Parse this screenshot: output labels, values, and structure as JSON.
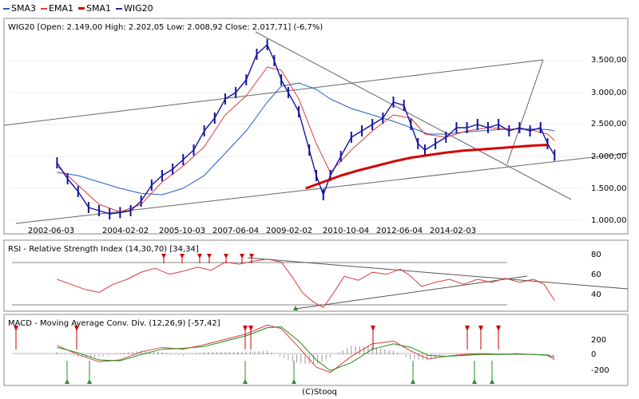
{
  "legend": {
    "items": [
      {
        "label": "SMA3",
        "color": "#1f5fbf"
      },
      {
        "label": "EMA1",
        "color": "#e03a3a"
      },
      {
        "label": "SMA1",
        "color": "#d40000"
      },
      {
        "label": "WIG20",
        "color": "#203080"
      }
    ]
  },
  "footer": {
    "text": "(C)Stooq"
  },
  "chart_data": [
    {
      "type": "line",
      "title": "WIG20 [Open: 2.149,00  High: 2.202,05  Low: 2.008,92  Close: 2.017,71] (-6,7%)",
      "x_tick_labels": [
        "2002-06-03",
        "2004-02-02",
        "2005-10-03",
        "2007-06-04",
        "2009-02-02",
        "2010-10-04",
        "2012-06-04",
        "2014-02-03"
      ],
      "y_tick_labels": [
        "1.000,00",
        "1.500,00",
        "2.000,00",
        "2.500,00",
        "3.000,00",
        "3.500,00"
      ],
      "ylim": [
        900,
        3950
      ],
      "series": [
        {
          "name": "WIG20",
          "color": "#1414a0",
          "x": [
            2001.4,
            2001.7,
            2002.0,
            2002.3,
            2002.6,
            2002.9,
            2003.2,
            2003.5,
            2003.8,
            2004.1,
            2004.4,
            2004.7,
            2005.0,
            2005.3,
            2005.6,
            2005.9,
            2006.2,
            2006.5,
            2006.8,
            2007.1,
            2007.4,
            2007.6,
            2007.8,
            2008.0,
            2008.3,
            2008.6,
            2008.8,
            2009.0,
            2009.2,
            2009.5,
            2009.8,
            2010.1,
            2010.4,
            2010.7,
            2011.0,
            2011.3,
            2011.5,
            2011.7,
            2011.9,
            2012.2,
            2012.5,
            2012.8,
            2013.1,
            2013.4,
            2013.7,
            2014.0,
            2014.3,
            2014.6,
            2014.9,
            2015.2,
            2015.4,
            2015.6
          ],
          "values": [
            1900,
            1650,
            1450,
            1200,
            1150,
            1100,
            1120,
            1150,
            1300,
            1550,
            1700,
            1800,
            1950,
            2100,
            2400,
            2600,
            2900,
            3000,
            3200,
            3600,
            3750,
            3500,
            3200,
            3000,
            2700,
            2100,
            1700,
            1400,
            1700,
            2000,
            2300,
            2400,
            2500,
            2600,
            2850,
            2800,
            2500,
            2200,
            2100,
            2200,
            2300,
            2450,
            2450,
            2500,
            2450,
            2500,
            2400,
            2450,
            2400,
            2450,
            2200,
            2018
          ]
        },
        {
          "name": "EMA1",
          "color": "#e03a3a",
          "x": [
            2001.4,
            2002.0,
            2002.6,
            2003.2,
            2003.8,
            2004.4,
            2005.0,
            2005.6,
            2006.2,
            2006.8,
            2007.4,
            2007.8,
            2008.3,
            2008.8,
            2009.2,
            2009.8,
            2010.4,
            2011.0,
            2011.5,
            2011.9,
            2012.5,
            2013.1,
            2013.7,
            2014.3,
            2014.9,
            2015.4,
            2015.6
          ],
          "values": [
            1850,
            1550,
            1250,
            1130,
            1250,
            1600,
            1850,
            2150,
            2650,
            2950,
            3400,
            3350,
            2900,
            2200,
            1750,
            2100,
            2400,
            2650,
            2600,
            2350,
            2300,
            2400,
            2450,
            2430,
            2420,
            2350,
            2250
          ]
        },
        {
          "name": "SMA3",
          "color": "#1f5fbf",
          "x": [
            2001.4,
            2002.0,
            2002.6,
            2003.2,
            2003.8,
            2004.4,
            2005.0,
            2005.6,
            2006.2,
            2006.8,
            2007.4,
            2007.8,
            2008.3,
            2008.8,
            2009.2,
            2009.8,
            2010.4,
            2011.0,
            2011.5,
            2012.0,
            2012.5,
            2013.0,
            2013.5,
            2014.0,
            2014.5,
            2015.0,
            2015.4,
            2015.6
          ],
          "values": [
            1750,
            1700,
            1600,
            1500,
            1420,
            1400,
            1500,
            1700,
            2050,
            2400,
            2850,
            3100,
            3150,
            3050,
            2900,
            2750,
            2650,
            2550,
            2450,
            2350,
            2350,
            2380,
            2400,
            2420,
            2430,
            2430,
            2420,
            2400
          ]
        },
        {
          "name": "SMA1",
          "color": "#d40000",
          "x": [
            2008.5,
            2009.0,
            2009.5,
            2010.0,
            2010.5,
            2011.0,
            2011.5,
            2012.0,
            2012.5,
            2013.0,
            2013.5,
            2014.0,
            2014.5,
            2015.0,
            2015.4
          ],
          "values": [
            1500,
            1600,
            1700,
            1780,
            1850,
            1920,
            1980,
            2020,
            2060,
            2090,
            2110,
            2130,
            2150,
            2170,
            2180
          ]
        }
      ]
    },
    {
      "type": "line",
      "title": "RSI - Relative Strength Index (14,30,70) [34,34]",
      "y_tick_labels": [
        "40",
        "60",
        "80"
      ],
      "ylim": [
        25,
        85
      ],
      "series": [
        {
          "name": "RSI",
          "color": "#e03a3a",
          "x": [
            2001.4,
            2001.8,
            2002.2,
            2002.6,
            2003.0,
            2003.4,
            2003.8,
            2004.2,
            2004.6,
            2005.0,
            2005.4,
            2005.8,
            2006.2,
            2006.6,
            2007.0,
            2007.4,
            2007.8,
            2008.1,
            2008.4,
            2008.7,
            2009.0,
            2009.3,
            2009.6,
            2010.0,
            2010.4,
            2010.8,
            2011.2,
            2011.5,
            2011.8,
            2012.2,
            2012.6,
            2013.0,
            2013.4,
            2013.8,
            2014.2,
            2014.6,
            2015.0,
            2015.3,
            2015.6
          ],
          "values": [
            55,
            50,
            45,
            42,
            50,
            55,
            62,
            66,
            60,
            63,
            67,
            64,
            72,
            70,
            73,
            75,
            72,
            58,
            42,
            33,
            27,
            42,
            58,
            54,
            62,
            60,
            65,
            58,
            48,
            52,
            55,
            50,
            55,
            52,
            56,
            52,
            55,
            50,
            34
          ]
        }
      ]
    },
    {
      "type": "line",
      "title": "MACD - Moving Average Conv. Div. (12,26,9) [-57,42]",
      "y_tick_labels": [
        "200",
        "0",
        "-200"
      ],
      "ylim": [
        -300,
        350
      ],
      "series": [
        {
          "name": "MACD",
          "color": "#e03a3a",
          "x": [
            2001.4,
            2002.0,
            2002.6,
            2003.2,
            2003.8,
            2004.4,
            2005.0,
            2005.6,
            2006.2,
            2006.8,
            2007.4,
            2007.8,
            2008.3,
            2008.8,
            2009.2,
            2009.8,
            2010.4,
            2011.0,
            2011.5,
            2012.0,
            2012.5,
            2013.0,
            2013.5,
            2014.0,
            2014.5,
            2015.0,
            2015.4,
            2015.6
          ],
          "values": [
            100,
            0,
            -80,
            -60,
            30,
            80,
            60,
            110,
            170,
            230,
            330,
            290,
            80,
            -140,
            -200,
            -20,
            120,
            150,
            40,
            -50,
            -20,
            0,
            10,
            0,
            10,
            0,
            -10,
            -57
          ]
        },
        {
          "name": "Signal",
          "color": "#1a8c1a",
          "x": [
            2001.4,
            2002.0,
            2002.6,
            2003.2,
            2003.8,
            2004.4,
            2005.0,
            2005.6,
            2006.2,
            2006.8,
            2007.4,
            2007.8,
            2008.3,
            2008.8,
            2009.2,
            2009.8,
            2010.4,
            2011.0,
            2011.5,
            2012.0,
            2012.5,
            2013.0,
            2013.5,
            2014.0,
            2014.5,
            2015.0,
            2015.4,
            2015.6
          ],
          "values": [
            80,
            20,
            -60,
            -70,
            0,
            60,
            70,
            90,
            150,
            210,
            300,
            310,
            150,
            -60,
            -180,
            -90,
            60,
            120,
            80,
            -10,
            -20,
            -10,
            0,
            0,
            5,
            0,
            -5,
            -30
          ]
        }
      ]
    }
  ]
}
